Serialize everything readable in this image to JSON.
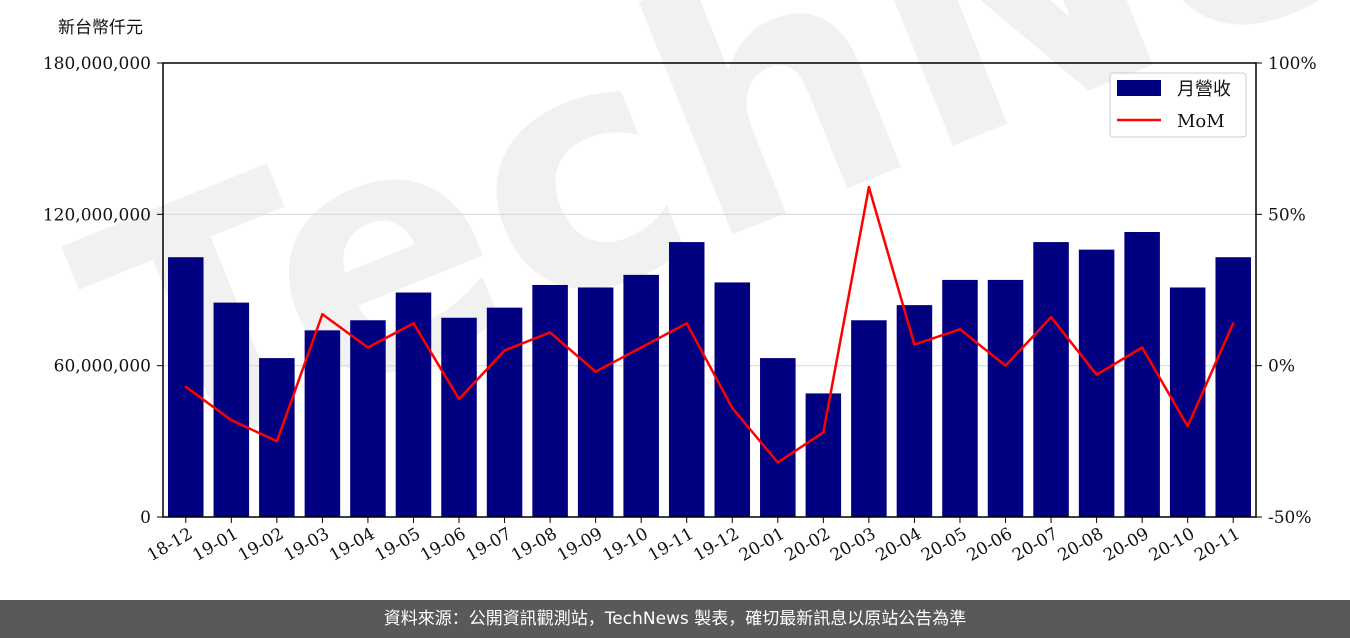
{
  "unit_label": "新台幣仟元",
  "footer": "資料來源：公開資訊觀測站，TechNews 製表，確切最新訊息以原站公告為準",
  "watermark": "TechNews",
  "colors": {
    "bar": "#000080",
    "line": "#ff0000",
    "grid": "#d9d9d9"
  },
  "chart_data": {
    "type": "bar",
    "categories": [
      "18-12",
      "19-01",
      "19-02",
      "19-03",
      "19-04",
      "19-05",
      "19-06",
      "19-07",
      "19-08",
      "19-09",
      "19-10",
      "19-11",
      "19-12",
      "20-01",
      "20-02",
      "20-03",
      "20-04",
      "20-05",
      "20-06",
      "20-07",
      "20-08",
      "20-09",
      "20-10",
      "20-11"
    ],
    "y_ticks": [
      "0",
      "60,000,000",
      "120,000,000",
      "180,000,000"
    ],
    "y_tick_values": [
      0,
      60000000,
      120000000,
      180000000
    ],
    "y2_ticks": [
      "-50%",
      "0%",
      "50%",
      "100%"
    ],
    "y2_tick_values": [
      -50,
      0,
      50,
      100
    ],
    "ylim": [
      0,
      180000000
    ],
    "y2lim": [
      -50,
      100
    ],
    "grid": "horizontal",
    "legend_position": "top-right",
    "series": [
      {
        "name": "月營收",
        "type": "bar",
        "axis": "left",
        "values": [
          103000000,
          85000000,
          63000000,
          74000000,
          78000000,
          89000000,
          79000000,
          83000000,
          92000000,
          91000000,
          96000000,
          109000000,
          93000000,
          63000000,
          49000000,
          78000000,
          84000000,
          94000000,
          94000000,
          109000000,
          106000000,
          113000000,
          91000000,
          103000000
        ]
      },
      {
        "name": "MoM",
        "type": "line",
        "axis": "right",
        "values": [
          -7,
          -18,
          -25,
          17,
          6,
          14,
          -11,
          5,
          11,
          -2,
          6,
          14,
          -14,
          -32,
          -22,
          59,
          7,
          12,
          0,
          16,
          -3,
          6,
          -20,
          14
        ]
      }
    ]
  }
}
